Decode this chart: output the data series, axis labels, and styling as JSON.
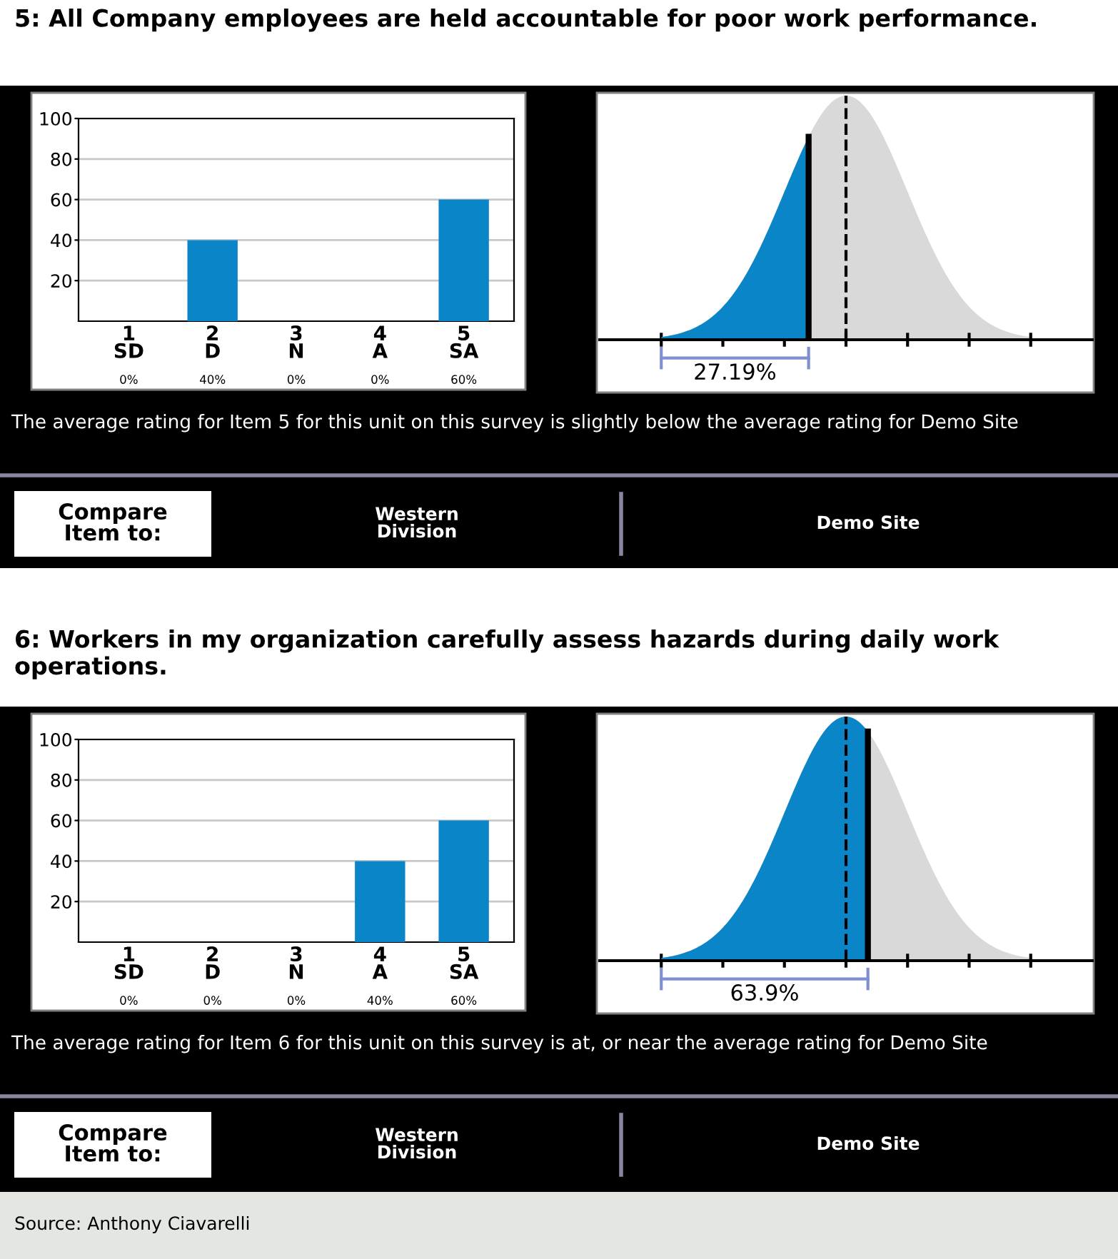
{
  "chart_data": [
    {
      "type": "bar",
      "title": "5: All Company employees are held accountable for poor work performance.",
      "categories": [
        "1\nSD",
        "2\nD",
        "3\nN",
        "4\nA",
        "5\nSA"
      ],
      "values": [
        0,
        40,
        0,
        0,
        60
      ],
      "value_labels": [
        "0%",
        "40%",
        "0%",
        "0%",
        "60%"
      ],
      "color": "#0a86c8",
      "ylim": [
        0,
        100
      ],
      "yticks": [
        20,
        40,
        60,
        80,
        100
      ],
      "grid": "y"
    },
    {
      "type": "other",
      "values": [
        27.19
      ],
      "value_labels": [
        "27.19%"
      ],
      "annotations": [
        "The average rating for Item 5 for this unit on this survey is slightly below the average rating for Demo Site",
        "Compare\nItem to:",
        "Western\nDivision",
        "Demo Site"
      ]
    },
    {
      "type": "bar",
      "title": "6: Workers in my organization carefully assess hazards during daily work operations.",
      "categories": [
        "1\nSD",
        "2\nD",
        "3\nN",
        "4\nA",
        "5\nSA"
      ],
      "values": [
        0,
        0,
        0,
        40,
        60
      ],
      "value_labels": [
        "0%",
        "0%",
        "0%",
        "40%",
        "60%"
      ],
      "color": "#0a86c8",
      "ylim": [
        0,
        100
      ],
      "yticks": [
        20,
        40,
        60,
        80,
        100
      ],
      "grid": "y"
    },
    {
      "type": "other",
      "values": [
        63.9
      ],
      "value_labels": [
        "63.9%"
      ],
      "annotations": [
        "The average rating for Item 6 for this unit on this survey is at, or near the average rating for Demo Site",
        "Compare\nItem to:",
        "Western\nDivision",
        "Demo Site",
        "Source: Anthony Ciavarelli"
      ]
    }
  ]
}
